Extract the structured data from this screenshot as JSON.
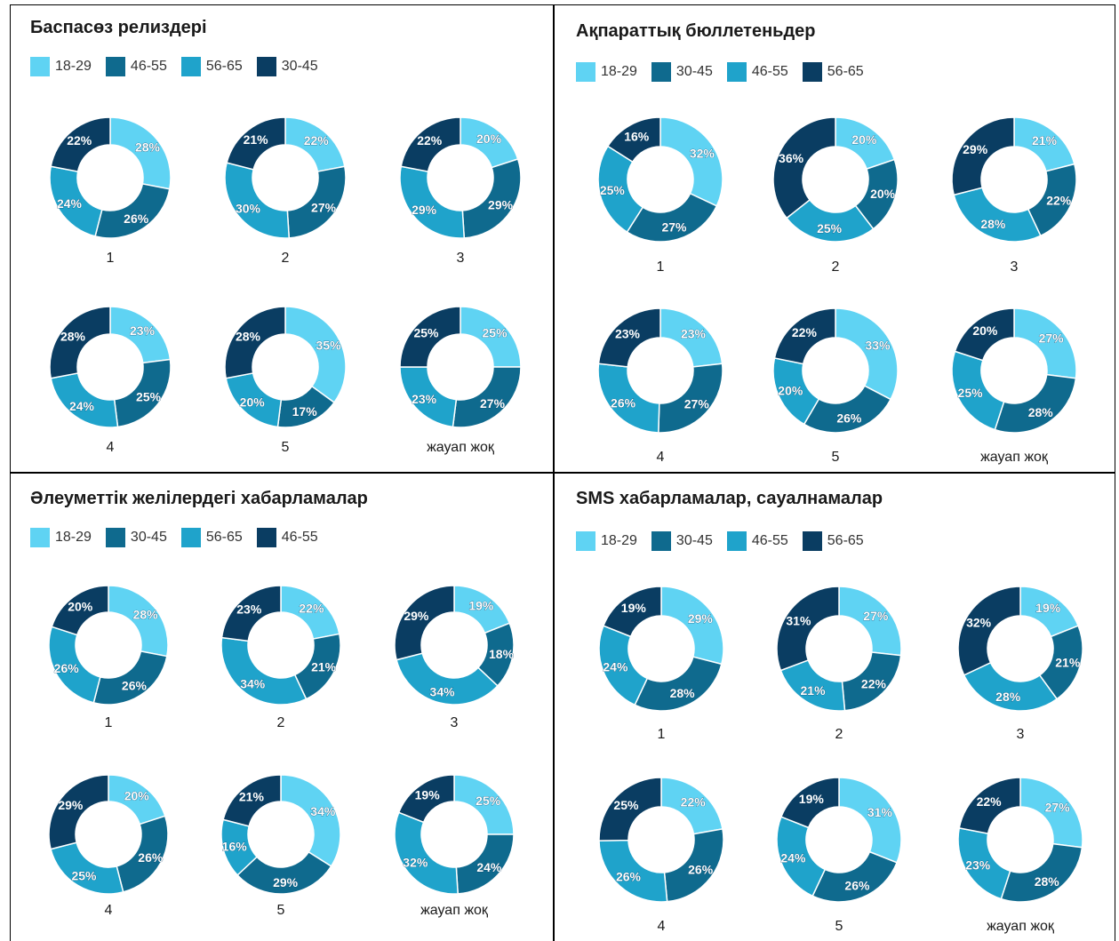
{
  "colors": {
    "light": "#5fd3f3",
    "mid_dark": "#0f6a8e",
    "mid": "#1fa3cb",
    "dark": "#0a3d62"
  },
  "chart_data": [
    {
      "type": "pie",
      "title": "Баспасөз релиздері",
      "legend": [
        {
          "name": "18-29",
          "color": "#5fd3f3"
        },
        {
          "name": "46-55",
          "color": "#0f6a8e"
        },
        {
          "name": "56-65",
          "color": "#1fa3cb"
        },
        {
          "name": "30-45",
          "color": "#0a3d62"
        }
      ],
      "categories": [
        "1",
        "2",
        "3",
        "4",
        "5",
        "жауап жоқ"
      ],
      "series": [
        {
          "name": "18-29",
          "values": [
            28,
            22,
            20,
            23,
            35,
            25
          ]
        },
        {
          "name": "46-55",
          "values": [
            26,
            27,
            29,
            25,
            17,
            27
          ]
        },
        {
          "name": "56-65",
          "values": [
            24,
            30,
            29,
            24,
            20,
            23
          ]
        },
        {
          "name": "30-45",
          "values": [
            22,
            21,
            22,
            28,
            28,
            25
          ]
        }
      ]
    },
    {
      "type": "pie",
      "title": "Ақпараттық бюллетеньдер",
      "legend": [
        {
          "name": "18-29",
          "color": "#5fd3f3"
        },
        {
          "name": "30-45",
          "color": "#0f6a8e"
        },
        {
          "name": "46-55",
          "color": "#1fa3cb"
        },
        {
          "name": "56-65",
          "color": "#0a3d62"
        }
      ],
      "categories": [
        "1",
        "2",
        "3",
        "4",
        "5",
        "жауап жоқ"
      ],
      "series": [
        {
          "name": "18-29",
          "values": [
            32,
            20,
            21,
            23,
            33,
            27
          ]
        },
        {
          "name": "30-45",
          "values": [
            27,
            20,
            22,
            27,
            26,
            28
          ]
        },
        {
          "name": "46-55",
          "values": [
            25,
            25,
            28,
            26,
            20,
            25
          ]
        },
        {
          "name": "56-65",
          "values": [
            16,
            36,
            29,
            23,
            22,
            20
          ]
        }
      ]
    },
    {
      "type": "pie",
      "title": "Әлеуметтік желілердегі хабарламалар",
      "legend": [
        {
          "name": "18-29",
          "color": "#5fd3f3"
        },
        {
          "name": "30-45",
          "color": "#0f6a8e"
        },
        {
          "name": "56-65",
          "color": "#1fa3cb"
        },
        {
          "name": "46-55",
          "color": "#0a3d62"
        }
      ],
      "categories": [
        "1",
        "2",
        "3",
        "4",
        "5",
        "жауап жоқ"
      ],
      "series": [
        {
          "name": "18-29",
          "values": [
            28,
            22,
            19,
            20,
            34,
            25
          ]
        },
        {
          "name": "30-45",
          "values": [
            26,
            21,
            18,
            26,
            29,
            24
          ]
        },
        {
          "name": "56-65",
          "values": [
            26,
            34,
            34,
            25,
            16,
            32
          ]
        },
        {
          "name": "46-55",
          "values": [
            20,
            23,
            29,
            29,
            21,
            19
          ]
        }
      ]
    },
    {
      "type": "pie",
      "title": "SMS хабарламалар, сауалнамалар",
      "legend": [
        {
          "name": "18-29",
          "color": "#5fd3f3"
        },
        {
          "name": "30-45",
          "color": "#0f6a8e"
        },
        {
          "name": "46-55",
          "color": "#1fa3cb"
        },
        {
          "name": "56-65",
          "color": "#0a3d62"
        }
      ],
      "categories": [
        "1",
        "2",
        "3",
        "4",
        "5",
        "жауап жоқ"
      ],
      "series": [
        {
          "name": "18-29",
          "values": [
            29,
            27,
            19,
            22,
            31,
            27
          ]
        },
        {
          "name": "30-45",
          "values": [
            28,
            22,
            21,
            26,
            26,
            28
          ]
        },
        {
          "name": "46-55",
          "values": [
            24,
            21,
            28,
            26,
            24,
            23
          ]
        },
        {
          "name": "56-65",
          "values": [
            19,
            31,
            32,
            25,
            19,
            22
          ]
        }
      ]
    }
  ]
}
